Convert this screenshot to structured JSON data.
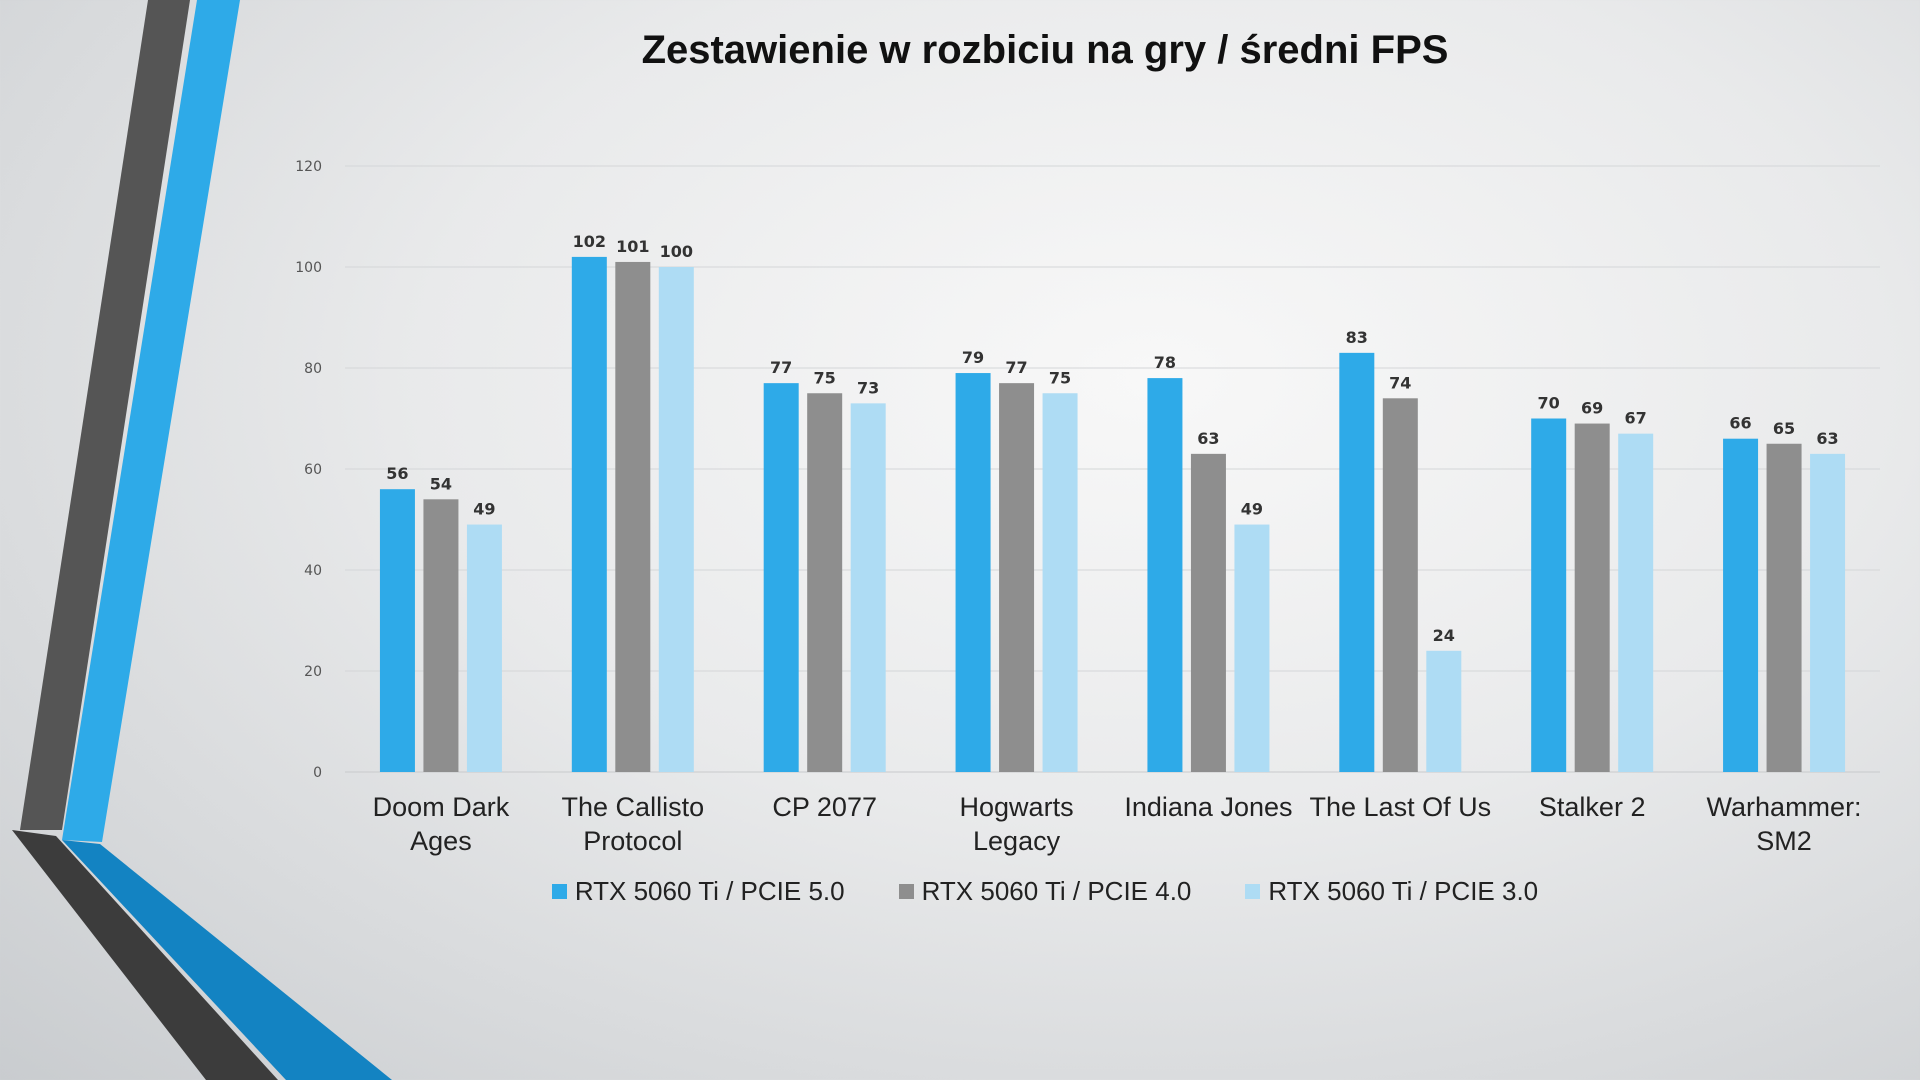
{
  "chart_data": {
    "type": "bar",
    "title": "Zestawienie w rozbiciu na gry / średni FPS",
    "categories": [
      [
        "Doom Dark",
        "Ages"
      ],
      [
        "The Callisto",
        "Protocol"
      ],
      [
        "CP 2077"
      ],
      [
        "Hogwarts",
        "Legacy"
      ],
      [
        "Indiana Jones"
      ],
      [
        "The Last Of Us"
      ],
      [
        "Stalker 2"
      ],
      [
        "Warhammer:",
        "SM2"
      ]
    ],
    "series": [
      {
        "name": "RTX 5060 Ti / PCIE 5.0",
        "color": "#2eaae8",
        "values": [
          56,
          102,
          77,
          79,
          78,
          83,
          70,
          66
        ]
      },
      {
        "name": "RTX 5060 Ti / PCIE 4.0",
        "color": "#8e8e8e",
        "values": [
          54,
          101,
          75,
          77,
          63,
          74,
          69,
          65
        ]
      },
      {
        "name": "RTX 5060 Ti / PCIE 3.0",
        "color": "#aedcf4",
        "values": [
          49,
          100,
          73,
          75,
          49,
          24,
          67,
          63
        ]
      }
    ],
    "ylim": [
      0,
      120
    ],
    "yticks": [
      0,
      20,
      40,
      60,
      80,
      100,
      120
    ],
    "grid": true,
    "legend": "bottom"
  },
  "decor_colors": {
    "dark": "#4a4a4a",
    "blue": "#2eaae8",
    "deep_blue": "#1383c2"
  }
}
